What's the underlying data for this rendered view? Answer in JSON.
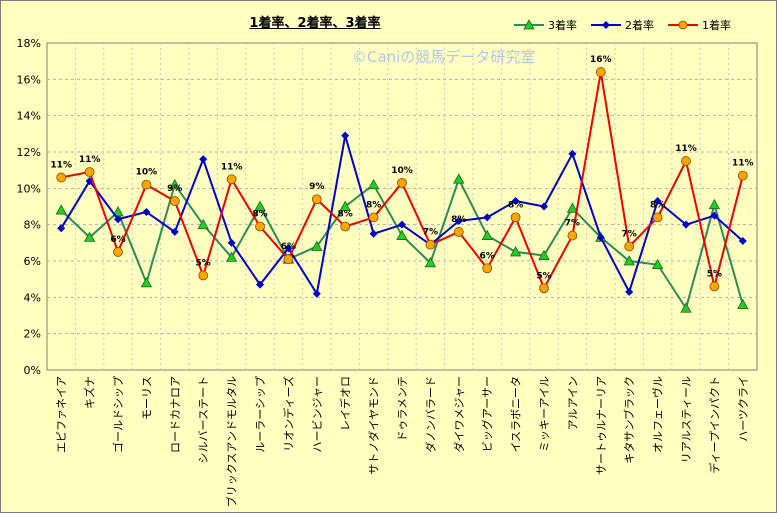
{
  "chart_data": {
    "type": "line",
    "title": "1着率、2着率、3着率",
    "watermark": "©Caniの競馬データ研究室",
    "ylim": [
      0,
      18
    ],
    "yticks": [
      "0%",
      "2%",
      "4%",
      "6%",
      "8%",
      "10%",
      "12%",
      "14%",
      "16%",
      "18%"
    ],
    "categories": [
      "エピファネイア",
      "キズナ",
      "ゴールドシップ",
      "モーリス",
      "ロードカナロア",
      "シルバーステート",
      "ブリックスアンドモルタル",
      "ルーラーシップ",
      "リオンディーズ",
      "ハービンジャー",
      "レイデオロ",
      "サトノダイヤモンド",
      "ドゥラメンテ",
      "ダノンバラード",
      "ダイワメジャー",
      "ビッグアーサー",
      "イスラボニータ",
      "ミッキーアイル",
      "アルアイン",
      "サートゥルナーリア",
      "キタサンブラック",
      "オルフェーヴル",
      "リアルスティール",
      "ディープインパクト",
      "ハーツクライ"
    ],
    "series": [
      {
        "name": "3着率",
        "color": "#2e8b57",
        "marker": "triangle",
        "marker_fill": "#22cc22",
        "values": [
          8.8,
          7.3,
          8.7,
          4.8,
          10.2,
          8.0,
          6.2,
          9.0,
          6.1,
          6.8,
          9.0,
          10.2,
          7.4,
          5.9,
          10.5,
          7.4,
          6.5,
          6.3,
          8.9,
          7.3,
          6.0,
          5.8,
          3.4,
          9.1,
          3.6
        ]
      },
      {
        "name": "2着率",
        "color": "#0000cc",
        "marker": "diamond",
        "marker_fill": "#0000cc",
        "values": [
          7.8,
          10.4,
          8.3,
          8.7,
          7.6,
          11.6,
          7.0,
          4.7,
          6.7,
          4.2,
          12.9,
          7.5,
          8.0,
          6.9,
          8.2,
          8.4,
          9.3,
          9.0,
          11.9,
          7.3,
          4.3,
          9.3,
          8.0,
          8.5,
          7.1
        ]
      },
      {
        "name": "1着率",
        "color": "#ee0000",
        "marker": "circle",
        "marker_fill": "#ffa500",
        "values": [
          10.6,
          10.9,
          6.5,
          10.2,
          9.3,
          5.2,
          10.5,
          7.9,
          6.1,
          9.4,
          7.9,
          8.4,
          10.3,
          6.9,
          7.6,
          5.6,
          8.4,
          4.5,
          7.4,
          16.4,
          6.8,
          8.4,
          11.5,
          4.6,
          10.7
        ]
      }
    ],
    "data_labels": [
      {
        "index": 0,
        "text": "11%"
      },
      {
        "index": 1,
        "text": "11%"
      },
      {
        "index": 2,
        "text": "6%"
      },
      {
        "index": 3,
        "text": "10%"
      },
      {
        "index": 4,
        "text": "9%"
      },
      {
        "index": 5,
        "text": "5%"
      },
      {
        "index": 6,
        "text": "11%"
      },
      {
        "index": 7,
        "text": "8%"
      },
      {
        "index": 8,
        "text": "6%"
      },
      {
        "index": 9,
        "text": "9%"
      },
      {
        "index": 10,
        "text": "8%"
      },
      {
        "index": 11,
        "text": "8%"
      },
      {
        "index": 12,
        "text": "10%"
      },
      {
        "index": 13,
        "text": "7%"
      },
      {
        "index": 14,
        "text": "8%"
      },
      {
        "index": 15,
        "text": "6%"
      },
      {
        "index": 16,
        "text": "8%"
      },
      {
        "index": 17,
        "text": "5%"
      },
      {
        "index": 18,
        "text": "7%"
      },
      {
        "index": 19,
        "text": "16%"
      },
      {
        "index": 20,
        "text": "7%"
      },
      {
        "index": 21,
        "text": "8%"
      },
      {
        "index": 22,
        "text": "11%"
      },
      {
        "index": 23,
        "text": "5%"
      },
      {
        "index": 24,
        "text": "11%"
      }
    ],
    "legend_position": "top-right",
    "grid": true
  }
}
